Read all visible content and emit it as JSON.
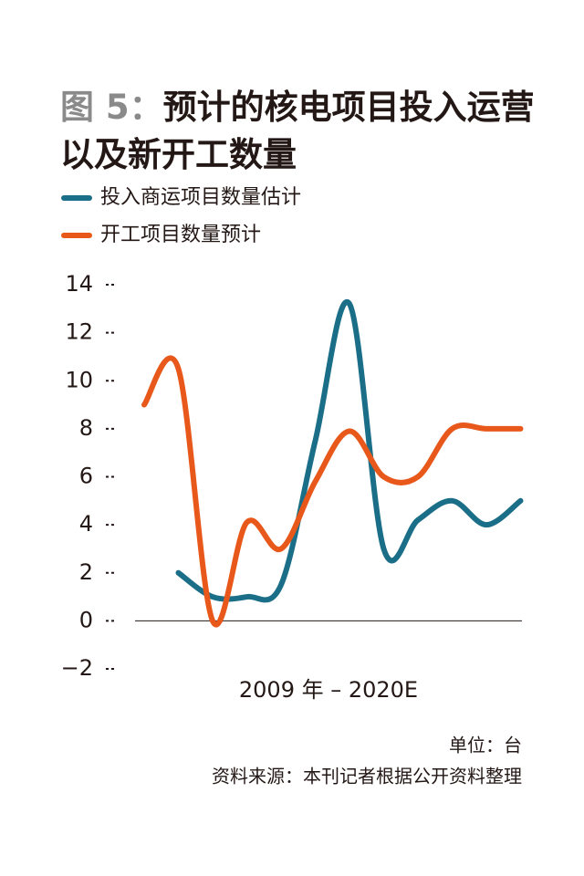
{
  "chart_data": {
    "type": "line",
    "figure_label": "图 5：",
    "title": "预计的核电项目投入运营以及新开工数量",
    "xlabel": "2009 年 – 2020E",
    "unit_note": "单位：台",
    "source": "资料来源：本刊记者根据公开资料整理",
    "categories": [
      null,
      null,
      null,
      null,
      null,
      null,
      null,
      null,
      null,
      null,
      null,
      null
    ],
    "series": [
      {
        "name": "投入商运项目数量估计",
        "color": "#1b6e87",
        "values": [
          null,
          2,
          1,
          1,
          1.5,
          7.5,
          13.2,
          3,
          4.2,
          5,
          4,
          5
        ]
      },
      {
        "name": "开工项目数量预计",
        "color": "#e8581b",
        "values": [
          9,
          10.5,
          0,
          4.1,
          3,
          5.8,
          7.9,
          6,
          6,
          8,
          8,
          8
        ]
      }
    ],
    "ylim": [
      -2,
      14
    ],
    "yticks": [
      {
        "value": -2,
        "label": "−2"
      },
      0,
      2,
      4,
      6,
      8,
      10,
      12,
      14
    ]
  }
}
